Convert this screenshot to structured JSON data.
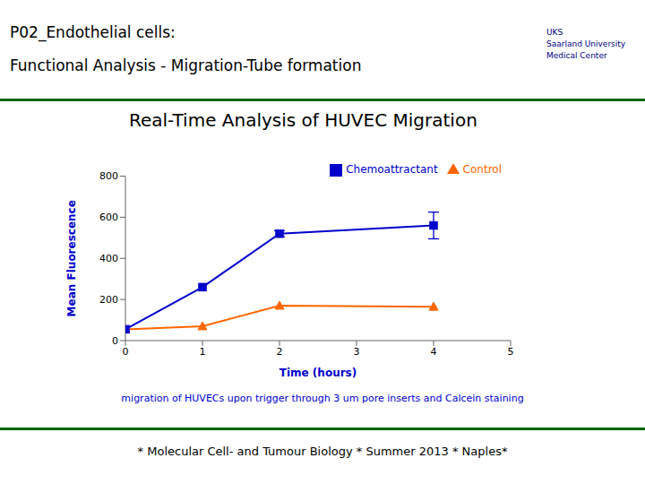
{
  "chart_data": {
    "type": "line",
    "title": "P02_Endothelial cells:\nFunctional Analysis - Migration-Tube formation",
    "subtitle": "Real-Time Analysis of HUVEC Migration",
    "annotations": [
      "UKS\nSaarland University\nMedical Center",
      "migration of HUVECs upon trigger through 3 um pore inserts and Calcein staining",
      "* Molecular Cell- and Tumour Biology * Summer 2013 * Naples*"
    ],
    "x_label": "Time (hours)",
    "y_label": "Mean Fluorescence",
    "x": [
      0,
      1,
      2,
      4
    ],
    "series": [
      {
        "name": "Control",
        "color": "#FF6600",
        "marker": "triangle",
        "values": [
          55,
          70,
          170,
          165
        ]
      },
      {
        "name": "Chemoattractant",
        "color": "#0000CC",
        "marker": "square",
        "values": [
          55,
          260,
          520,
          560
        ],
        "errors": [
          0,
          0,
          15,
          65
        ]
      }
    ],
    "xlim": [
      0,
      5
    ],
    "xticks": [
      0,
      1,
      2,
      3,
      4,
      5
    ],
    "ylim": [
      0,
      800
    ],
    "yticks": [
      0,
      200,
      400,
      600,
      800
    ],
    "grid": false,
    "legend": "upper right"
  }
}
